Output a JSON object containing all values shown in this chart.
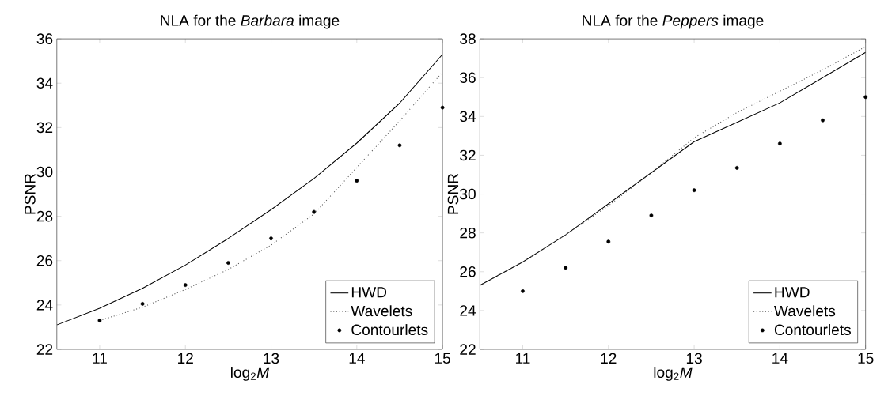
{
  "chart_data": [
    {
      "type": "line",
      "title": "NLA for the *Barbara* image",
      "xlabel": "log$_{2}$*M*",
      "ylabel": "PSNR",
      "xlim": [
        10.5,
        15
      ],
      "ylim": [
        22,
        36
      ],
      "xticks": [
        11,
        12,
        13,
        14,
        15
      ],
      "yticks": [
        22,
        24,
        26,
        28,
        30,
        32,
        34,
        36
      ],
      "grid": false,
      "legend": "bottom right",
      "series": [
        {
          "name": "HWD",
          "color": "#000000",
          "line_style": "solid",
          "marker": "none",
          "x": [
            10.5,
            11,
            11.5,
            12,
            12.5,
            13,
            13.5,
            14,
            14.5,
            15
          ],
          "values": [
            23.1,
            23.85,
            24.75,
            25.8,
            27.0,
            28.3,
            29.7,
            31.3,
            33.1,
            35.3
          ]
        },
        {
          "name": "Wavelets",
          "color": "#555555",
          "line_style": "dotted",
          "marker": "none",
          "x": [
            11,
            11.5,
            12,
            12.5,
            13,
            13.5,
            14,
            14.5,
            15
          ],
          "values": [
            23.3,
            23.9,
            24.7,
            25.6,
            26.7,
            28.1,
            30.2,
            32.3,
            34.5
          ]
        },
        {
          "name": "Contourlets",
          "color": "#000000",
          "type": "scatter",
          "marker": "circle",
          "x": [
            11,
            11.5,
            12,
            12.5,
            13,
            13.5,
            14,
            14.5,
            15
          ],
          "values": [
            23.3,
            24.05,
            24.9,
            25.9,
            27.0,
            28.2,
            29.6,
            31.2,
            32.9
          ]
        }
      ]
    },
    {
      "type": "line",
      "title": "NLA for the *Peppers* image",
      "xlabel": "log$_{2}$*M*",
      "ylabel": "PSNR",
      "xlim": [
        10.5,
        15
      ],
      "ylim": [
        22,
        38
      ],
      "xticks": [
        11,
        12,
        13,
        14,
        15
      ],
      "yticks": [
        22,
        24,
        26,
        28,
        30,
        32,
        34,
        36,
        38
      ],
      "grid": false,
      "legend": "bottom right",
      "series": [
        {
          "name": "HWD",
          "color": "#000000",
          "line_style": "solid",
          "marker": "none",
          "x": [
            10.5,
            11,
            11.5,
            12,
            12.5,
            13,
            13.5,
            14,
            14.5,
            15
          ],
          "values": [
            25.3,
            26.5,
            27.9,
            29.5,
            31.1,
            32.7,
            33.7,
            34.7,
            36.0,
            37.3
          ]
        },
        {
          "name": "Wavelets",
          "color": "#555555",
          "line_style": "dotted",
          "marker": "none",
          "x": [
            10.5,
            11,
            11.5,
            12,
            12.5,
            13,
            13.5,
            14,
            14.5,
            15
          ],
          "values": [
            25.3,
            26.5,
            27.9,
            29.4,
            31.1,
            32.9,
            34.2,
            35.3,
            36.4,
            37.6
          ]
        },
        {
          "name": "Contourlets",
          "color": "#000000",
          "type": "scatter",
          "marker": "circle",
          "x": [
            11,
            11.5,
            12,
            12.5,
            13,
            13.5,
            14,
            14.5,
            15
          ],
          "values": [
            25.0,
            26.2,
            27.55,
            28.9,
            30.2,
            31.35,
            32.6,
            33.8,
            35.0
          ]
        }
      ]
    }
  ]
}
